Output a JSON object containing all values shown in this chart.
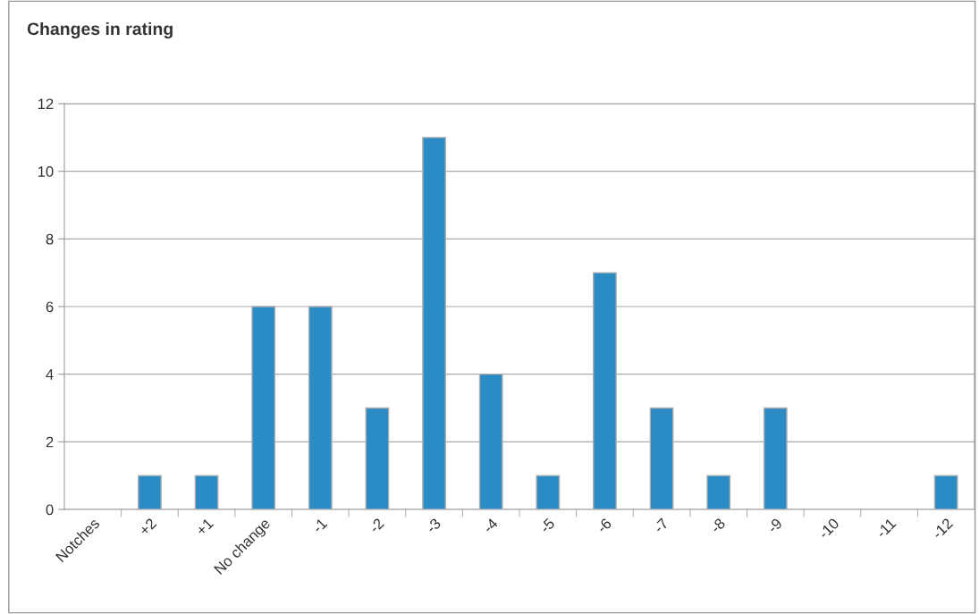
{
  "chart_data": {
    "type": "bar",
    "title": "Changes in rating",
    "categories": [
      "Notches",
      "+2",
      "+1",
      "No change",
      "-1",
      "-2",
      "-3",
      "-4",
      "-5",
      "-6",
      "-7",
      "-8",
      "-9",
      "-10",
      "-11",
      "-12"
    ],
    "values": [
      null,
      1,
      1,
      6,
      6,
      3,
      11,
      4,
      1,
      7,
      3,
      1,
      3,
      0,
      0,
      1
    ],
    "color": "#2b8bc4",
    "ylim": [
      0,
      12
    ],
    "yticks": [
      0,
      2,
      4,
      6,
      8,
      10,
      12
    ],
    "grid": "y",
    "legend": false
  }
}
